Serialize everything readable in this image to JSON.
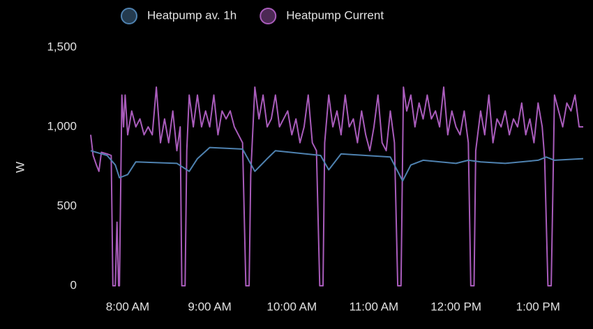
{
  "chart_data": {
    "type": "line",
    "y_label": "W",
    "xlim": [
      7.55,
      13.55
    ],
    "xticks": [
      {
        "value": 8,
        "label": "8:00 AM"
      },
      {
        "value": 9,
        "label": "9:00 AM"
      },
      {
        "value": 10,
        "label": "10:00 AM"
      },
      {
        "value": 11,
        "label": "11:00 AM"
      },
      {
        "value": 12,
        "label": "12:00 PM"
      },
      {
        "value": 13,
        "label": "1:00 PM"
      }
    ],
    "ylim": [
      0,
      1500
    ],
    "yticks": [
      0,
      500,
      {
        "value": 1000,
        "label": "1,000"
      },
      {
        "value": 1500,
        "label": "1,500"
      }
    ],
    "series": [
      {
        "name": "Heatpump av. 1h",
        "color": "#4f82b0",
        "x": [
          7.55,
          7.75,
          7.85,
          7.9,
          8.0,
          8.1,
          8.6,
          8.75,
          8.85,
          9.0,
          9.4,
          9.55,
          9.7,
          9.8,
          10.35,
          10.45,
          10.6,
          11.2,
          11.35,
          11.45,
          11.6,
          12.0,
          12.15,
          12.3,
          12.6,
          13.0,
          13.1,
          13.2,
          13.55
        ],
        "values": [
          850,
          820,
          760,
          680,
          700,
          780,
          770,
          720,
          800,
          870,
          860,
          720,
          800,
          850,
          820,
          730,
          830,
          810,
          660,
          760,
          790,
          770,
          790,
          780,
          770,
          790,
          810,
          790,
          800
        ]
      },
      {
        "name": "Heatpump Current",
        "color": "#a95cbb",
        "x": [
          7.55,
          7.58,
          7.62,
          7.65,
          7.68,
          7.75,
          7.8,
          7.82,
          7.85,
          7.87,
          7.89,
          7.9,
          7.93,
          7.95,
          7.97,
          8.0,
          8.05,
          8.1,
          8.15,
          8.2,
          8.25,
          8.3,
          8.35,
          8.4,
          8.45,
          8.5,
          8.55,
          8.6,
          8.64,
          8.66,
          8.7,
          8.72,
          8.75,
          8.8,
          8.85,
          8.9,
          8.95,
          9.0,
          9.05,
          9.1,
          9.15,
          9.2,
          9.25,
          9.3,
          9.35,
          9.4,
          9.44,
          9.48,
          9.5,
          9.55,
          9.6,
          9.65,
          9.7,
          9.75,
          9.8,
          9.85,
          9.9,
          9.95,
          10.0,
          10.05,
          10.1,
          10.15,
          10.2,
          10.25,
          10.3,
          10.34,
          10.38,
          10.4,
          10.45,
          10.5,
          10.55,
          10.6,
          10.65,
          10.7,
          10.75,
          10.8,
          10.85,
          10.9,
          10.95,
          11.0,
          11.05,
          11.1,
          11.15,
          11.2,
          11.25,
          11.29,
          11.33,
          11.36,
          11.4,
          11.45,
          11.5,
          11.55,
          11.6,
          11.65,
          11.7,
          11.75,
          11.8,
          11.85,
          11.9,
          11.95,
          12.0,
          12.05,
          12.1,
          12.15,
          12.18,
          12.22,
          12.24,
          12.3,
          12.35,
          12.4,
          12.45,
          12.5,
          12.55,
          12.6,
          12.65,
          12.7,
          12.75,
          12.8,
          12.85,
          12.9,
          12.95,
          13.0,
          13.05,
          13.08,
          13.12,
          13.16,
          13.18,
          13.2,
          13.25,
          13.3,
          13.35,
          13.4,
          13.45,
          13.5,
          13.55
        ],
        "values": [
          950,
          820,
          760,
          720,
          840,
          830,
          820,
          0,
          0,
          400,
          0,
          0,
          1200,
          1000,
          1200,
          950,
          1100,
          1000,
          1050,
          950,
          1000,
          950,
          1250,
          900,
          1050,
          900,
          1100,
          850,
          1000,
          0,
          0,
          850,
          1200,
          1000,
          1200,
          1000,
          1100,
          1000,
          1200,
          950,
          1100,
          1050,
          1100,
          1000,
          950,
          900,
          0,
          0,
          700,
          1250,
          1050,
          1200,
          1000,
          1050,
          1200,
          1000,
          1050,
          1100,
          950,
          1050,
          900,
          1000,
          1200,
          900,
          850,
          0,
          0,
          900,
          1200,
          1000,
          1100,
          950,
          1200,
          1000,
          1050,
          900,
          1100,
          950,
          850,
          1000,
          1200,
          900,
          850,
          1100,
          900,
          0,
          0,
          1250,
          1100,
          1200,
          1000,
          1150,
          1050,
          1200,
          1050,
          1100,
          1000,
          1250,
          950,
          1100,
          1000,
          950,
          1100,
          900,
          0,
          0,
          850,
          1100,
          950,
          1200,
          900,
          1050,
          1000,
          1100,
          950,
          1050,
          1000,
          1150,
          950,
          1050,
          900,
          1150,
          1000,
          800,
          0,
          0,
          600,
          1200,
          1100,
          1000,
          1150,
          1100,
          1200,
          1000,
          1000
        ]
      }
    ]
  }
}
